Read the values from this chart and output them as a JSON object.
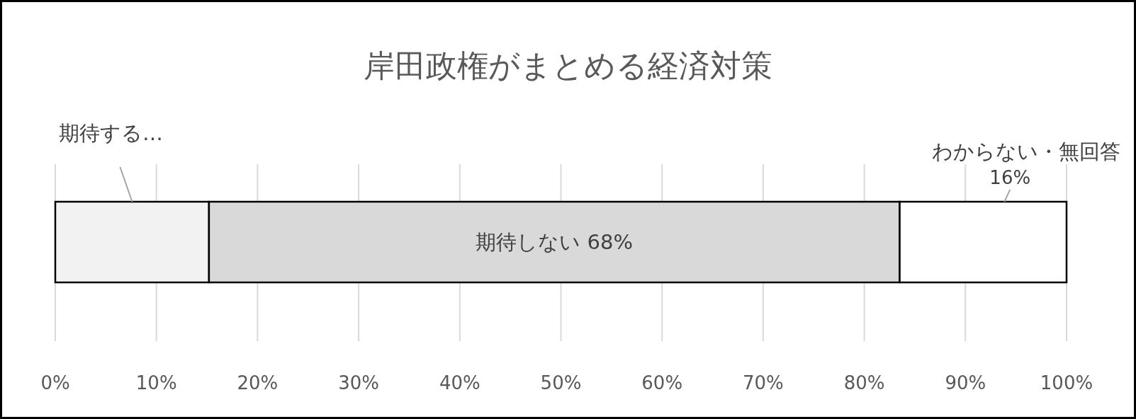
{
  "chart_data": {
    "type": "bar",
    "orientation": "horizontal",
    "stacked": true,
    "title": "岸田政権がまとめる経済対策",
    "categories": [
      null
    ],
    "series": [
      {
        "name": "期待する…",
        "color": "#f2f2f2",
        "values": [
          15.2
        ]
      },
      {
        "name": "期待しない",
        "color": "#d9d9d9",
        "values": [
          68.3
        ],
        "value_labels": [
          "68%"
        ]
      },
      {
        "name": "わからない・無回答",
        "color": "#ffffff",
        "values": [
          16.5
        ],
        "value_labels": [
          "16%"
        ]
      }
    ],
    "xlim": [
      0,
      100
    ],
    "xticks": [
      {
        "value": 0,
        "label": "0%"
      },
      {
        "value": 10,
        "label": "10%"
      },
      {
        "value": 20,
        "label": "20%"
      },
      {
        "value": 30,
        "label": "30%"
      },
      {
        "value": 40,
        "label": "40%"
      },
      {
        "value": 50,
        "label": "50%"
      },
      {
        "value": 60,
        "label": "60%"
      },
      {
        "value": 70,
        "label": "70%"
      },
      {
        "value": 80,
        "label": "80%"
      },
      {
        "value": 90,
        "label": "90%"
      },
      {
        "value": 100,
        "label": "100%"
      }
    ],
    "grid": "x"
  }
}
